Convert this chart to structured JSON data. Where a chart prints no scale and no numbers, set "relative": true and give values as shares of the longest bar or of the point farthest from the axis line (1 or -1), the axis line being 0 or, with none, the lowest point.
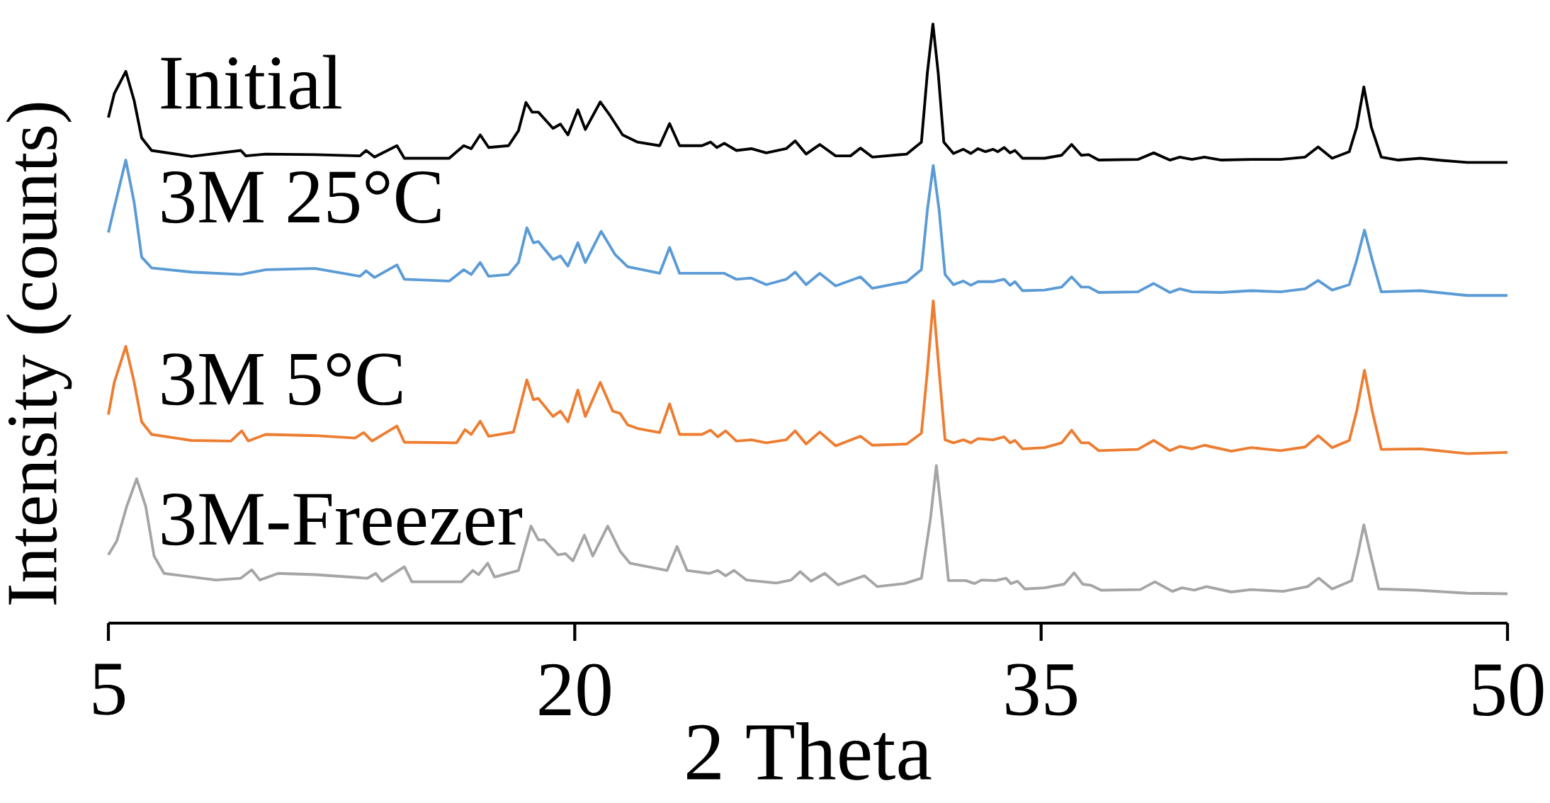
{
  "chart_data": {
    "type": "line",
    "relative": true,
    "xlabel": "2 Theta",
    "ylabel": "Intensity (counts)",
    "xlim": [
      5,
      50
    ],
    "xticks": [
      5,
      20,
      35,
      50
    ],
    "marker": "none",
    "line_style": "solid",
    "series": [
      {
        "name": "Initial",
        "color": "#000000",
        "x": [
          5.0,
          5.19,
          5.56,
          5.83,
          6.07,
          6.39,
          7.67,
          9.26,
          9.42,
          10.06,
          11.65,
          13.09,
          13.29,
          13.56,
          14.28,
          14.52,
          15.96,
          16.43,
          16.67,
          16.96,
          17.23,
          17.87,
          18.19,
          18.43,
          18.63,
          18.83,
          19.3,
          19.54,
          19.78,
          20.1,
          20.34,
          20.82,
          21.14,
          21.54,
          22.02,
          22.73,
          23.05,
          23.37,
          24.09,
          24.37,
          24.57,
          24.81,
          25.2,
          25.68,
          26.16,
          26.8,
          27.09,
          27.44,
          27.88,
          28.39,
          28.87,
          29.19,
          29.57,
          30.68,
          31.15,
          31.34,
          31.52,
          31.69,
          31.87,
          32.18,
          32.5,
          32.74,
          32.97,
          33.21,
          33.45,
          33.61,
          33.81,
          34.0,
          34.16,
          34.4,
          35.11,
          35.66,
          35.98,
          36.29,
          36.53,
          36.85,
          38.11,
          38.62,
          39.14,
          39.46,
          39.85,
          40.25,
          40.8,
          41.75,
          42.7,
          43.49,
          43.91,
          44.36,
          44.91,
          45.15,
          45.38,
          45.62,
          45.94,
          46.49,
          47.2,
          47.76,
          48.7,
          50
        ],
        "values": [
          0.844,
          0.884,
          0.921,
          0.872,
          0.81,
          0.789,
          0.779,
          0.789,
          0.78,
          0.783,
          0.782,
          0.78,
          0.789,
          0.778,
          0.797,
          0.776,
          0.776,
          0.797,
          0.792,
          0.815,
          0.794,
          0.797,
          0.822,
          0.869,
          0.853,
          0.853,
          0.826,
          0.833,
          0.815,
          0.857,
          0.824,
          0.87,
          0.847,
          0.815,
          0.803,
          0.797,
          0.834,
          0.797,
          0.797,
          0.803,
          0.794,
          0.801,
          0.789,
          0.792,
          0.785,
          0.792,
          0.805,
          0.783,
          0.799,
          0.78,
          0.78,
          0.793,
          0.778,
          0.783,
          0.803,
          0.918,
          1.0,
          0.918,
          0.803,
          0.784,
          0.791,
          0.784,
          0.792,
          0.787,
          0.791,
          0.787,
          0.794,
          0.785,
          0.789,
          0.776,
          0.776,
          0.781,
          0.799,
          0.781,
          0.782,
          0.773,
          0.774,
          0.785,
          0.773,
          0.778,
          0.774,
          0.778,
          0.773,
          0.774,
          0.774,
          0.778,
          0.795,
          0.776,
          0.787,
          0.828,
          0.895,
          0.828,
          0.778,
          0.773,
          0.776,
          0.773,
          0.769,
          0.769
        ]
      },
      {
        "name": "3M 25°C",
        "color": "#5b9bd5",
        "x": [
          5.0,
          5.19,
          5.56,
          5.83,
          6.07,
          6.39,
          7.67,
          9.26,
          10.06,
          11.65,
          13.09,
          13.29,
          13.56,
          14.28,
          14.52,
          15.96,
          16.43,
          16.67,
          16.96,
          17.23,
          17.87,
          18.19,
          18.46,
          18.67,
          18.83,
          19.3,
          19.54,
          19.78,
          20.1,
          20.34,
          20.85,
          21.3,
          21.7,
          22.73,
          23.05,
          23.37,
          24.41,
          24.81,
          25.2,
          25.68,
          26.16,
          26.8,
          27.09,
          27.44,
          27.88,
          28.39,
          29.19,
          29.57,
          30.68,
          31.15,
          31.34,
          31.53,
          31.72,
          31.91,
          32.18,
          32.5,
          32.74,
          32.97,
          33.45,
          33.81,
          34.0,
          34.16,
          34.4,
          35.11,
          35.66,
          35.98,
          36.29,
          36.53,
          36.85,
          38.11,
          38.62,
          39.14,
          39.46,
          39.85,
          40.8,
          41.75,
          42.7,
          43.49,
          43.91,
          44.36,
          44.91,
          45.15,
          45.4,
          45.65,
          45.94,
          47.2,
          48.7,
          50
        ],
        "values": [
          0.652,
          0.694,
          0.773,
          0.702,
          0.611,
          0.593,
          0.586,
          0.582,
          0.59,
          0.592,
          0.579,
          0.588,
          0.577,
          0.598,
          0.574,
          0.571,
          0.59,
          0.582,
          0.602,
          0.579,
          0.582,
          0.602,
          0.66,
          0.635,
          0.637,
          0.607,
          0.613,
          0.596,
          0.635,
          0.602,
          0.654,
          0.615,
          0.595,
          0.584,
          0.627,
          0.584,
          0.584,
          0.584,
          0.574,
          0.576,
          0.565,
          0.574,
          0.586,
          0.565,
          0.584,
          0.563,
          0.578,
          0.559,
          0.57,
          0.59,
          0.689,
          0.764,
          0.689,
          0.582,
          0.565,
          0.571,
          0.564,
          0.57,
          0.57,
          0.574,
          0.564,
          0.57,
          0.555,
          0.556,
          0.561,
          0.578,
          0.561,
          0.561,
          0.552,
          0.553,
          0.567,
          0.552,
          0.558,
          0.553,
          0.552,
          0.555,
          0.553,
          0.558,
          0.572,
          0.556,
          0.565,
          0.606,
          0.656,
          0.606,
          0.553,
          0.555,
          0.547,
          0.547
        ]
      },
      {
        "name": "3M 5°C",
        "color": "#ed7d31",
        "x": [
          5.0,
          5.19,
          5.56,
          5.83,
          6.07,
          6.39,
          7.67,
          8.94,
          9.29,
          9.5,
          10.06,
          11.65,
          12.93,
          13.21,
          13.48,
          14.28,
          14.52,
          16.2,
          16.47,
          16.67,
          16.96,
          17.23,
          18.03,
          18.46,
          18.67,
          18.83,
          19.3,
          19.54,
          19.78,
          20.1,
          20.34,
          20.82,
          21.22,
          21.46,
          21.7,
          22.02,
          22.73,
          23.05,
          23.37,
          24.09,
          24.37,
          24.6,
          24.85,
          25.2,
          25.68,
          26.16,
          26.8,
          27.09,
          27.44,
          27.88,
          28.39,
          29.19,
          29.57,
          30.68,
          31.15,
          31.34,
          31.53,
          31.72,
          31.91,
          32.18,
          32.5,
          32.74,
          32.97,
          33.45,
          33.81,
          34.0,
          34.16,
          34.4,
          35.11,
          35.66,
          35.98,
          36.29,
          36.53,
          36.85,
          38.11,
          38.62,
          39.14,
          39.46,
          39.85,
          40.25,
          41.12,
          41.75,
          42.7,
          43.49,
          43.91,
          44.36,
          44.91,
          45.15,
          45.4,
          45.65,
          45.94,
          47.2,
          48.7,
          50
        ],
        "values": [
          0.348,
          0.402,
          0.462,
          0.402,
          0.336,
          0.315,
          0.305,
          0.304,
          0.321,
          0.304,
          0.315,
          0.313,
          0.309,
          0.318,
          0.304,
          0.329,
          0.302,
          0.301,
          0.323,
          0.315,
          0.337,
          0.312,
          0.319,
          0.406,
          0.373,
          0.375,
          0.345,
          0.354,
          0.336,
          0.389,
          0.345,
          0.402,
          0.354,
          0.35,
          0.331,
          0.325,
          0.318,
          0.366,
          0.315,
          0.315,
          0.322,
          0.311,
          0.321,
          0.304,
          0.306,
          0.301,
          0.306,
          0.321,
          0.299,
          0.319,
          0.296,
          0.312,
          0.297,
          0.299,
          0.317,
          0.42,
          0.538,
          0.42,
          0.306,
          0.301,
          0.306,
          0.301,
          0.308,
          0.306,
          0.311,
          0.301,
          0.305,
          0.291,
          0.293,
          0.301,
          0.322,
          0.301,
          0.301,
          0.288,
          0.29,
          0.305,
          0.288,
          0.295,
          0.291,
          0.297,
          0.287,
          0.293,
          0.288,
          0.294,
          0.313,
          0.293,
          0.305,
          0.354,
          0.422,
          0.354,
          0.29,
          0.291,
          0.283,
          0.285
        ]
      },
      {
        "name": "3M-Freezer",
        "color": "#a5a5a5",
        "x": [
          5.0,
          5.27,
          5.59,
          5.91,
          6.2,
          6.47,
          6.79,
          8.46,
          9.26,
          9.61,
          9.87,
          10.46,
          11.65,
          13.33,
          13.6,
          13.8,
          14.52,
          14.76,
          16.36,
          16.72,
          16.91,
          17.2,
          17.42,
          18.19,
          18.59,
          18.83,
          19.02,
          19.46,
          19.7,
          19.94,
          20.31,
          20.58,
          21.06,
          21.46,
          21.78,
          22.97,
          23.29,
          23.61,
          24.33,
          24.6,
          24.85,
          25.12,
          25.52,
          26.48,
          26.96,
          27.25,
          27.6,
          28.04,
          28.47,
          29.32,
          29.73,
          30.6,
          31.15,
          31.44,
          31.63,
          31.82,
          32.02,
          32.58,
          32.86,
          33.08,
          33.53,
          33.87,
          34.03,
          34.24,
          34.48,
          35.11,
          35.74,
          36.06,
          36.34,
          36.61,
          36.93,
          38.19,
          38.66,
          39.22,
          39.53,
          39.93,
          40.32,
          41.12,
          41.75,
          42.78,
          43.57,
          43.93,
          44.36,
          44.99,
          45.19,
          45.38,
          45.59,
          45.86,
          47.12,
          48.7,
          50
        ],
        "values": [
          0.114,
          0.137,
          0.195,
          0.241,
          0.195,
          0.112,
          0.083,
          0.072,
          0.075,
          0.089,
          0.072,
          0.083,
          0.081,
          0.075,
          0.083,
          0.07,
          0.094,
          0.069,
          0.069,
          0.088,
          0.081,
          0.1,
          0.077,
          0.088,
          0.162,
          0.139,
          0.139,
          0.114,
          0.116,
          0.104,
          0.147,
          0.112,
          0.162,
          0.12,
          0.1,
          0.088,
          0.128,
          0.088,
          0.083,
          0.088,
          0.079,
          0.088,
          0.072,
          0.067,
          0.072,
          0.086,
          0.07,
          0.083,
          0.064,
          0.079,
          0.061,
          0.066,
          0.075,
          0.174,
          0.263,
          0.174,
          0.071,
          0.071,
          0.066,
          0.072,
          0.071,
          0.075,
          0.066,
          0.07,
          0.057,
          0.059,
          0.065,
          0.084,
          0.065,
          0.063,
          0.055,
          0.056,
          0.069,
          0.053,
          0.059,
          0.055,
          0.061,
          0.052,
          0.056,
          0.053,
          0.061,
          0.075,
          0.057,
          0.071,
          0.116,
          0.164,
          0.116,
          0.057,
          0.055,
          0.05,
          0.049
        ]
      }
    ]
  }
}
